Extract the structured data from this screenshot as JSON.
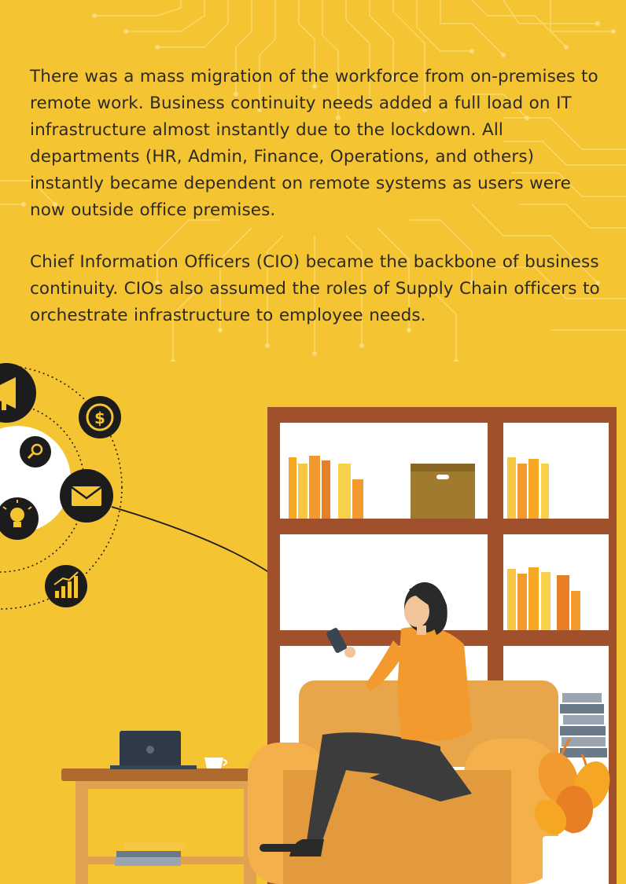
{
  "content": {
    "paragraph_1": "There was a mass migration of the workforce from on-premises to remote work. Business continuity needs added a full load on IT infrastructure almost instantly due to the lockdown. All departments (HR, Admin, Finance, Operations, and others) instantly became dependent on remote systems as users were now outside office premises.",
    "paragraph_2": "Chief Information Officers (CIO) became the backbone of business continuity. CIOs also assumed the roles of Supply Chain officers to orchestrate infrastructure to employee needs."
  },
  "illustration": {
    "orbit_icons": [
      "megaphone-icon",
      "dollar-icon",
      "search-icon",
      "mail-icon",
      "lightbulb-icon",
      "growth-chart-icon"
    ],
    "scene_items": [
      "bookshelf",
      "woman-with-phone",
      "armchair",
      "side-table",
      "laptop",
      "coffee-cup",
      "plant",
      "book-stack"
    ]
  },
  "colors": {
    "background": "#f5c432",
    "text": "#2a2a2a",
    "shelf_wood": "#a0512b",
    "icon_circle": "#1c1c1c",
    "accent_orange": "#f29a2e"
  }
}
